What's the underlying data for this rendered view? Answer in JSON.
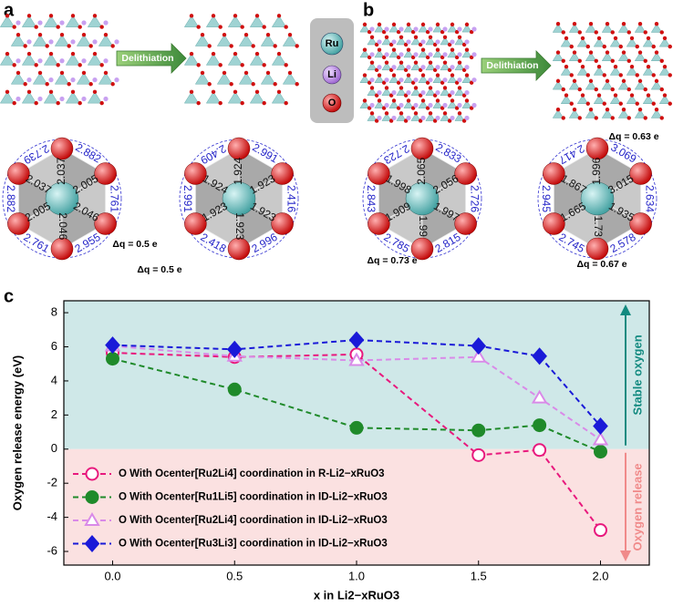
{
  "panel_labels": [
    "a",
    "b",
    "c"
  ],
  "panel_a": {
    "arrow": "Delithiation",
    "key": [
      "Ru",
      "Li",
      "O"
    ],
    "left": {
      "outer": [
        "2.882",
        "2.761",
        "2.955",
        "2.761",
        "2.882",
        "2.739"
      ],
      "inner": [
        "2.037",
        "2.005",
        "2.046",
        "2.046",
        "2.005",
        "2.037"
      ]
    },
    "right": {
      "outer": [
        "2.991",
        "2.416",
        "2.996",
        "2.418",
        "2.991",
        "2.409"
      ],
      "inner": [
        "1.924",
        "1.923",
        "1.923",
        "1.923",
        "1.923",
        "1.924"
      ],
      "charges": [
        "Δq = 0.5 e",
        "Δq = 0.5 e"
      ]
    }
  },
  "panel_b": {
    "arrow": "Delithiation",
    "left": {
      "outer": [
        "2.833",
        "2.726",
        "2.815",
        "2.785",
        "2.843",
        "2.723"
      ],
      "inner": [
        "2.065",
        "2.056",
        "1.997",
        "1.99",
        "1.909",
        "1.998"
      ]
    },
    "right": {
      "outer": [
        "3.069",
        "2.634",
        "2.578",
        "2.745",
        "2.945",
        "2.417"
      ],
      "inner": [
        "1.996",
        "3.015",
        "1.935",
        "1.73",
        "1.665",
        "1.867"
      ],
      "charges": [
        "Δq = 0.63 e",
        "Δq = 0.73 e",
        "Δq = 0.67 e"
      ]
    }
  },
  "chart_data": {
    "type": "line",
    "xlabel": "x in Li2−xRuO3",
    "ylabel": "Oxygen release energy (eV)",
    "annotations": [
      "Stable oxygen",
      "Oxygen release"
    ],
    "x": [
      0,
      0.5,
      1,
      1.5,
      1.75,
      2
    ],
    "xlim": [
      -0.2,
      2.2
    ],
    "xticks": [
      {
        "value": 0,
        "label": "0.0"
      },
      {
        "value": 0.5,
        "label": "0.5"
      },
      {
        "value": 1,
        "label": "1.0"
      },
      {
        "value": 1.5,
        "label": "1.5"
      },
      {
        "value": 2,
        "label": "2.0"
      }
    ],
    "ylim": [
      -6.8,
      8.7
    ],
    "yticks": [
      8,
      6,
      4,
      2,
      0,
      -2,
      -4,
      -6
    ],
    "series": [
      {
        "name": "O With Ocenter[Ru2Li4] coordination in R-Li2−xRuO3",
        "color": "#e8197d",
        "marker": "circle",
        "filled": false,
        "values": [
          5.65,
          5.4,
          5.55,
          -0.35,
          -0.05,
          -4.75
        ]
      },
      {
        "name": "O With Ocenter[Ru1Li5] coordination in ID-Li2−xRuO3",
        "color": "#1f8a2a",
        "marker": "circle",
        "filled": true,
        "values": [
          5.3,
          3.5,
          1.25,
          1.1,
          1.4,
          -0.15
        ]
      },
      {
        "name": "O With Ocenter[Ru2Li4] coordination in ID-Li2−xRuO3",
        "color": "#d98ae8",
        "marker": "triangle",
        "filled": false,
        "values": [
          6.05,
          5.45,
          5.2,
          5.4,
          3.0,
          0.55
        ]
      },
      {
        "name": "O With Ocenter[Ru3Li3] coordination in ID-Li2−xRuO3",
        "color": "#1a1ad8",
        "marker": "diamond",
        "filled": true,
        "values": [
          6.1,
          5.85,
          6.4,
          6.05,
          5.45,
          1.35
        ]
      }
    ]
  }
}
